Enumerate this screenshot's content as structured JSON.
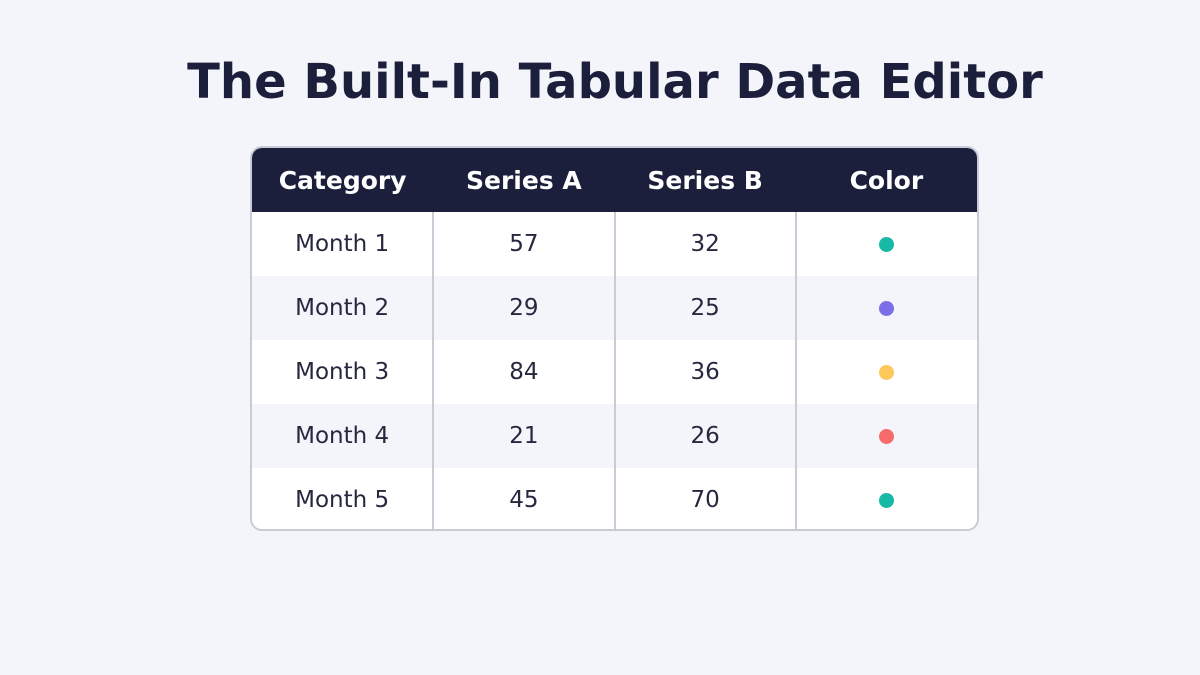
{
  "title": "The Built-In Tabular Data Editor",
  "table": {
    "headers": [
      "Category",
      "Series A",
      "Series B",
      "Color"
    ],
    "rows": [
      {
        "category": "Month 1",
        "series_a": "57",
        "series_b": "32",
        "color": "#17b8a6"
      },
      {
        "category": "Month 2",
        "series_a": "29",
        "series_b": "25",
        "color": "#7b6fe8"
      },
      {
        "category": "Month 3",
        "series_a": "84",
        "series_b": "36",
        "color": "#fdc95a"
      },
      {
        "category": "Month 4",
        "series_a": "21",
        "series_b": "26",
        "color": "#f76b6b"
      },
      {
        "category": "Month 5",
        "series_a": "45",
        "series_b": "70",
        "color": "#17b8a6"
      }
    ]
  },
  "colors": {
    "header_bg": "#1b1f3b",
    "page_bg": "#f4f5fa",
    "border": "#c9cbd6"
  }
}
